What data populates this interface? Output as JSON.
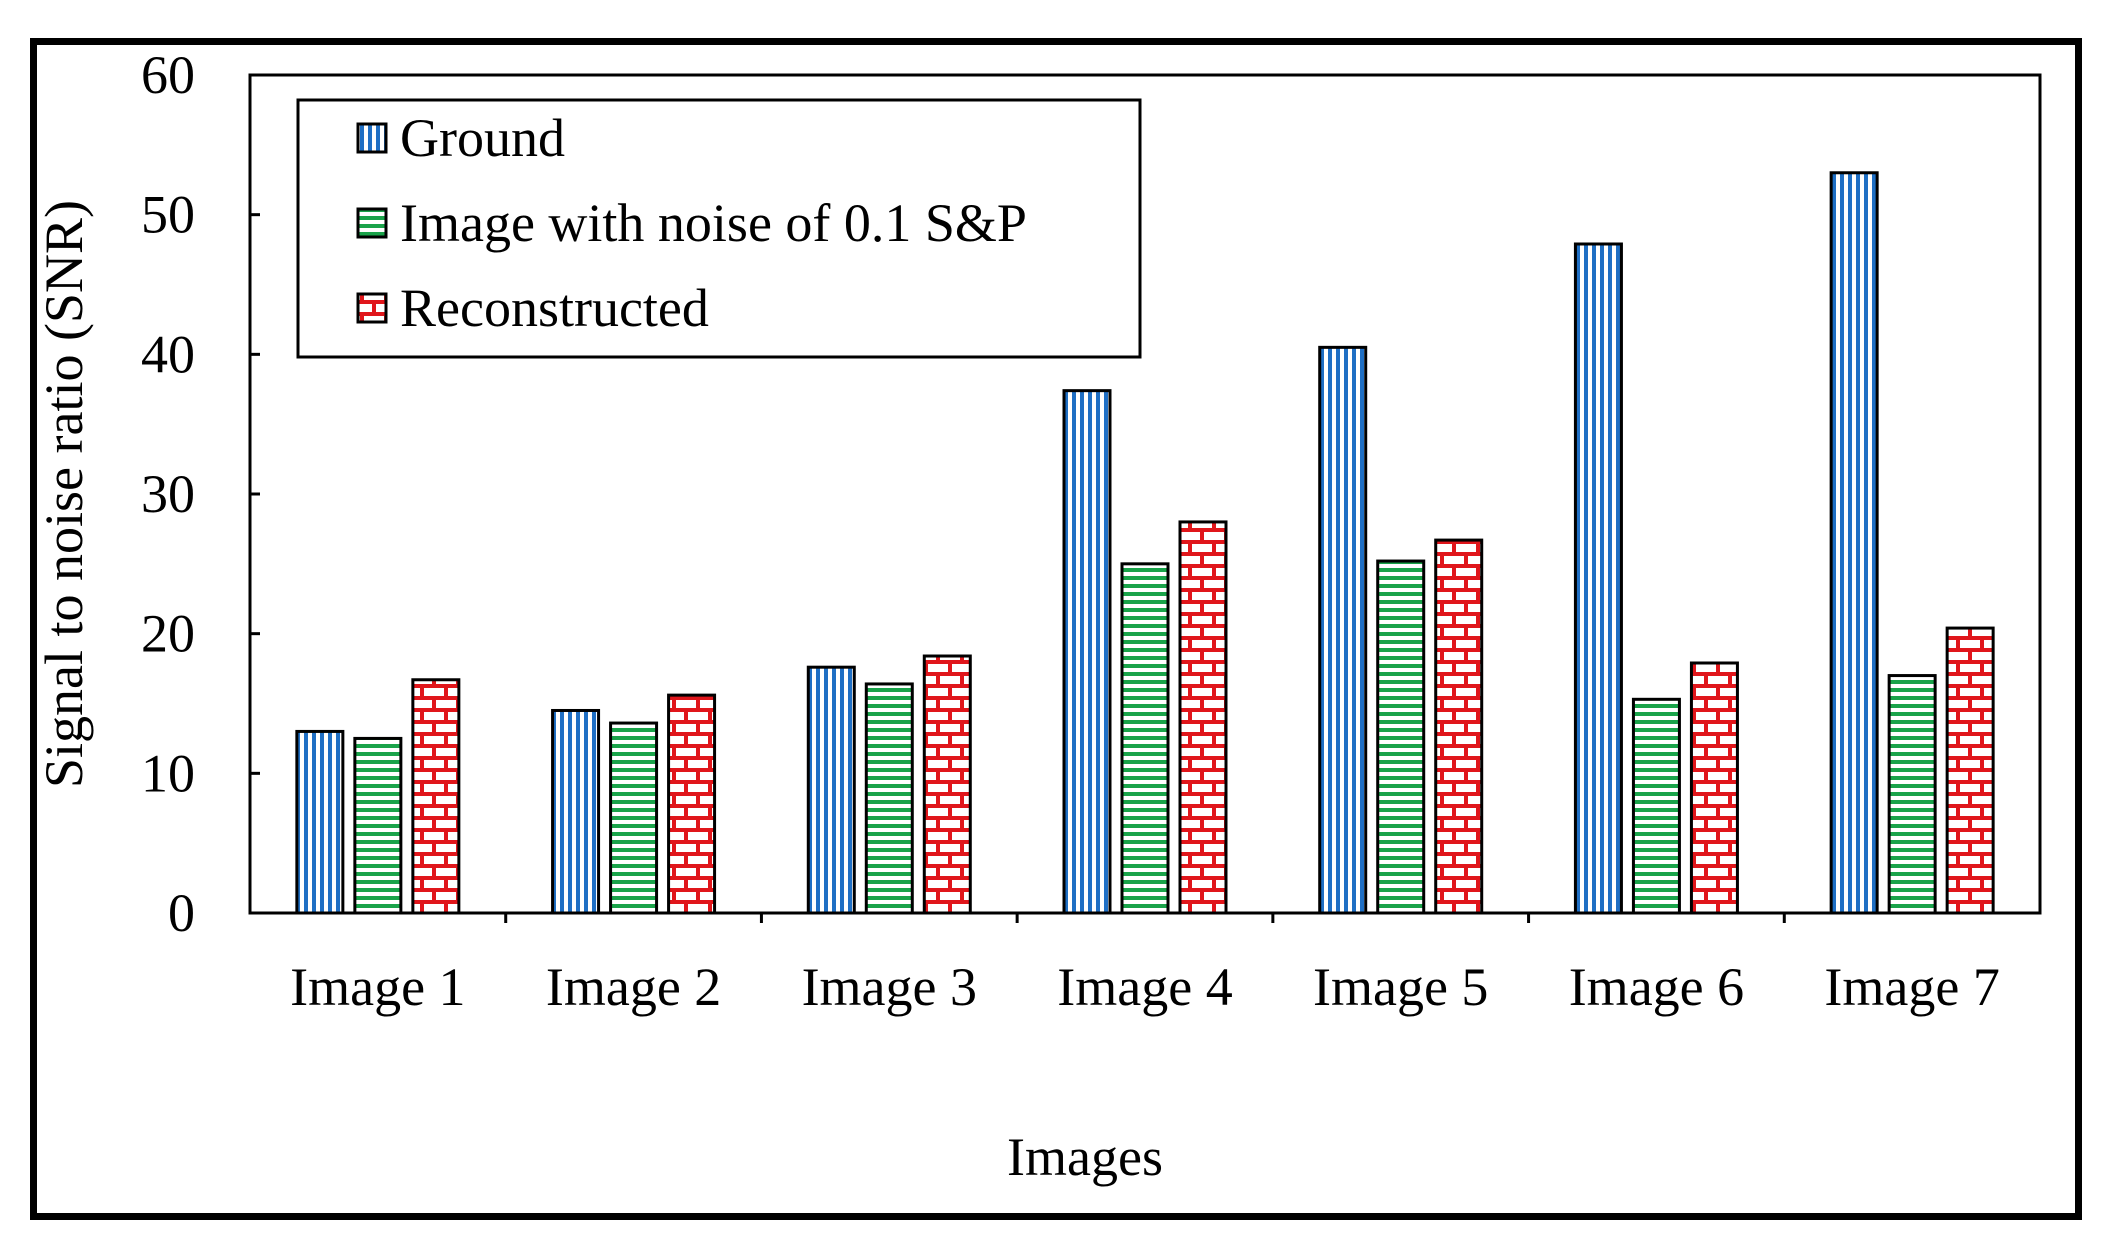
{
  "chart_data": {
    "type": "bar",
    "xlabel": "Images",
    "ylabel": "Signal to noise ratio (SNR)",
    "ylim": [
      0,
      60
    ],
    "yticks": [
      0,
      10,
      20,
      30,
      40,
      50,
      60
    ],
    "grid": false,
    "legend_position": "top-left",
    "categories": [
      "Image 1",
      "Image 2",
      "Image 3",
      "Image 4",
      "Image 5",
      "Image 6",
      "Image 7"
    ],
    "series": [
      {
        "name": "Ground",
        "color": "#1f6fc4",
        "pattern": "vertical-lines",
        "values": [
          13.0,
          14.5,
          17.6,
          37.4,
          40.5,
          47.9,
          53.0
        ]
      },
      {
        "name": "Image with noise of 0.1 S&P",
        "color": "#1aa34a",
        "pattern": "horizontal-lines",
        "values": [
          12.5,
          13.6,
          16.4,
          25.0,
          25.2,
          15.3,
          17.0
        ]
      },
      {
        "name": "Reconstructed",
        "color": "#e0161b",
        "pattern": "bricks",
        "values": [
          16.7,
          15.6,
          18.4,
          28.0,
          26.7,
          17.9,
          20.4
        ]
      }
    ]
  }
}
